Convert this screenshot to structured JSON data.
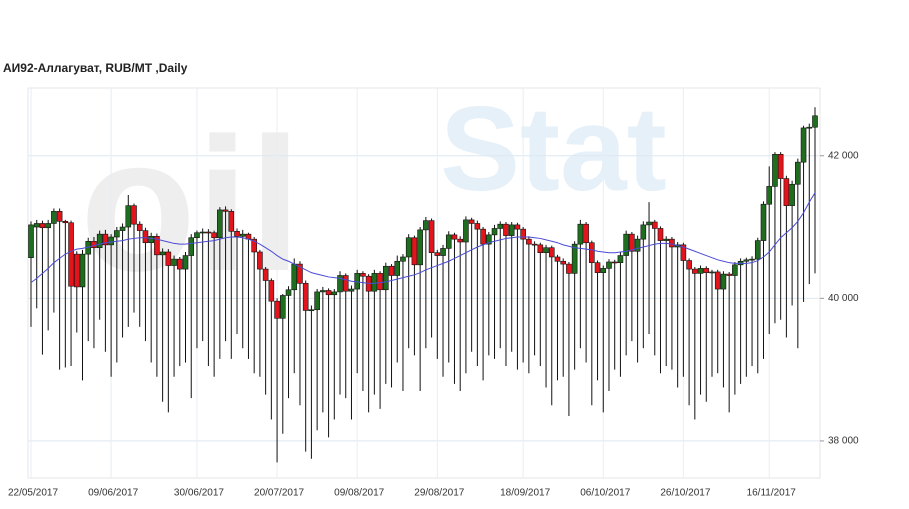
{
  "chart_data": {
    "type": "candlestick",
    "title": "АИ92-Аллагуват,  RUB/MT ,Daily",
    "watermark": [
      "oil",
      "Stat"
    ],
    "categories": [
      "22/05/2017",
      null,
      null,
      null,
      null,
      null,
      null,
      null,
      null,
      null,
      null,
      null,
      null,
      null,
      "09/06/2017",
      null,
      null,
      null,
      null,
      null,
      null,
      null,
      null,
      null,
      null,
      null,
      null,
      null,
      null,
      "30/06/2017",
      null,
      null,
      null,
      null,
      null,
      null,
      null,
      null,
      null,
      null,
      null,
      null,
      null,
      "20/07/2017",
      null,
      null,
      null,
      null,
      null,
      null,
      null,
      null,
      null,
      null,
      null,
      null,
      null,
      "09/08/2017",
      null,
      null,
      null,
      null,
      null,
      null,
      null,
      null,
      null,
      null,
      null,
      null,
      null,
      "29/08/2017",
      null,
      null,
      null,
      null,
      null,
      null,
      null,
      null,
      null,
      null,
      null,
      null,
      null,
      null,
      "18/09/2017",
      null,
      null,
      null,
      null,
      null,
      null,
      null,
      null,
      null,
      null,
      null,
      null,
      null,
      "06/10/2017",
      null,
      null,
      null,
      null,
      null,
      null,
      null,
      null,
      null,
      null,
      null,
      null,
      null,
      "26/10/2017",
      null,
      null,
      null,
      null,
      null,
      null,
      null,
      null,
      null,
      null,
      null,
      null,
      null,
      null,
      "16/11/2017",
      null,
      null,
      null,
      null,
      null,
      null,
      null,
      null
    ],
    "ohlc": [
      [
        40570,
        41080,
        39600,
        41030
      ],
      [
        41000,
        41100,
        39860,
        41050
      ],
      [
        41050,
        41090,
        39210,
        40990
      ],
      [
        40990,
        41100,
        39550,
        41050
      ],
      [
        41050,
        41260,
        39800,
        41220
      ],
      [
        41220,
        41260,
        39000,
        41080
      ],
      [
        41080,
        41100,
        39030,
        41060
      ],
      [
        41060,
        41090,
        39050,
        40170
      ],
      [
        40620,
        40660,
        39520,
        40160
      ],
      [
        40160,
        40680,
        38850,
        40620
      ],
      [
        40620,
        40850,
        39400,
        40800
      ],
      [
        40800,
        40860,
        39300,
        40710
      ],
      [
        40710,
        40950,
        39700,
        40900
      ],
      [
        40900,
        40960,
        39250,
        40750
      ],
      [
        40750,
        40900,
        38900,
        40860
      ],
      [
        40860,
        41000,
        39100,
        40950
      ],
      [
        40950,
        41050,
        39450,
        41000
      ],
      [
        41000,
        41450,
        39600,
        41300
      ],
      [
        41300,
        41330,
        39800,
        41040
      ],
      [
        41040,
        41080,
        39600,
        40950
      ],
      [
        40950,
        40990,
        39400,
        40780
      ],
      [
        40780,
        40920,
        39100,
        40870
      ],
      [
        40870,
        40910,
        38900,
        40610
      ],
      [
        40610,
        40700,
        38550,
        40650
      ],
      [
        40650,
        40690,
        38400,
        40460
      ],
      [
        40460,
        40600,
        38900,
        40550
      ],
      [
        40550,
        40580,
        39050,
        40410
      ],
      [
        40410,
        40650,
        39100,
        40600
      ],
      [
        40600,
        40900,
        38600,
        40850
      ],
      [
        40850,
        40950,
        39300,
        40920
      ],
      [
        40920,
        40980,
        39400,
        40930
      ],
      [
        40930,
        40970,
        39050,
        40920
      ],
      [
        40920,
        40950,
        38900,
        40850
      ],
      [
        40850,
        41280,
        39150,
        41240
      ],
      [
        41240,
        41290,
        39400,
        41220
      ],
      [
        41220,
        41250,
        39150,
        40940
      ],
      [
        40940,
        40980,
        39500,
        40870
      ],
      [
        40870,
        40960,
        39300,
        40900
      ],
      [
        40900,
        40920,
        39150,
        40830
      ],
      [
        40830,
        40860,
        38950,
        40650
      ],
      [
        40650,
        40680,
        38900,
        40410
      ],
      [
        40410,
        40440,
        38650,
        40250
      ],
      [
        40250,
        40280,
        38300,
        39960
      ],
      [
        39960,
        40000,
        37700,
        39720
      ],
      [
        39720,
        40060,
        38100,
        40040
      ],
      [
        40040,
        40170,
        38600,
        40120
      ],
      [
        40120,
        40560,
        38950,
        40480
      ],
      [
        40480,
        40520,
        38500,
        40210
      ],
      [
        40210,
        40250,
        37850,
        39830
      ],
      [
        39830,
        39900,
        37750,
        39840
      ],
      [
        39840,
        40130,
        38150,
        40090
      ],
      [
        40090,
        40160,
        38400,
        40110
      ],
      [
        40110,
        40140,
        38050,
        40050
      ],
      [
        40050,
        40130,
        38300,
        40090
      ],
      [
        40090,
        40380,
        38650,
        40320
      ],
      [
        40320,
        40350,
        38600,
        40100
      ],
      [
        40100,
        40180,
        38300,
        40130
      ],
      [
        40130,
        40400,
        38950,
        40350
      ],
      [
        40350,
        40380,
        38700,
        40310
      ],
      [
        40310,
        40340,
        38400,
        40100
      ],
      [
        40100,
        40400,
        38650,
        40350
      ],
      [
        40350,
        40380,
        38450,
        40120
      ],
      [
        40120,
        40500,
        38800,
        40450
      ],
      [
        40450,
        40480,
        38750,
        40320
      ],
      [
        40320,
        40600,
        39100,
        40520
      ],
      [
        40520,
        40620,
        38700,
        40580
      ],
      [
        40580,
        40900,
        39300,
        40850
      ],
      [
        40850,
        40880,
        39200,
        40470
      ],
      [
        40470,
        41000,
        38700,
        40960
      ],
      [
        40960,
        41140,
        39300,
        41090
      ],
      [
        41090,
        41120,
        39450,
        40640
      ],
      [
        40640,
        40680,
        39150,
        40600
      ],
      [
        40600,
        40750,
        38900,
        40700
      ],
      [
        40700,
        40940,
        39100,
        40890
      ],
      [
        40890,
        40920,
        38800,
        40830
      ],
      [
        40830,
        40870,
        38700,
        40790
      ],
      [
        40790,
        41150,
        38950,
        41100
      ],
      [
        41100,
        41130,
        39250,
        41050
      ],
      [
        41050,
        41090,
        39050,
        40970
      ],
      [
        40970,
        41000,
        38850,
        40760
      ],
      [
        40760,
        40930,
        39200,
        40890
      ],
      [
        40890,
        41030,
        39150,
        40980
      ],
      [
        40980,
        41080,
        39300,
        41040
      ],
      [
        41040,
        41070,
        39050,
        40880
      ],
      [
        40880,
        41070,
        39250,
        41030
      ],
      [
        41030,
        41060,
        39000,
        40970
      ],
      [
        40970,
        41000,
        39100,
        40830
      ],
      [
        40830,
        40870,
        38950,
        40760
      ],
      [
        40760,
        40800,
        39200,
        40750
      ],
      [
        40750,
        40780,
        39050,
        40640
      ],
      [
        40640,
        40750,
        38750,
        40710
      ],
      [
        40710,
        40740,
        38500,
        40580
      ],
      [
        40580,
        40610,
        38850,
        40520
      ],
      [
        40520,
        40560,
        38900,
        40480
      ],
      [
        40480,
        40510,
        38350,
        40350
      ],
      [
        40350,
        40800,
        39000,
        40760
      ],
      [
        40760,
        41100,
        39300,
        41040
      ],
      [
        41040,
        41070,
        39100,
        40780
      ],
      [
        40780,
        40810,
        38500,
        40500
      ],
      [
        40500,
        40530,
        38850,
        40360
      ],
      [
        40360,
        40460,
        38400,
        40420
      ],
      [
        40420,
        40550,
        38700,
        40510
      ],
      [
        40510,
        40540,
        39000,
        40500
      ],
      [
        40500,
        40650,
        38900,
        40600
      ],
      [
        40600,
        40950,
        39200,
        40900
      ],
      [
        40900,
        40930,
        39400,
        40660
      ],
      [
        40660,
        40880,
        39100,
        40830
      ],
      [
        40830,
        41080,
        39300,
        41030
      ],
      [
        41030,
        41350,
        39500,
        41070
      ],
      [
        41070,
        41100,
        39200,
        40980
      ],
      [
        40980,
        41010,
        38950,
        40810
      ],
      [
        40810,
        40870,
        39050,
        40830
      ],
      [
        40830,
        40860,
        39000,
        40720
      ],
      [
        40720,
        40790,
        38750,
        40750
      ],
      [
        40750,
        40780,
        38900,
        40530
      ],
      [
        40530,
        40560,
        38500,
        40410
      ],
      [
        40410,
        40440,
        38300,
        40350
      ],
      [
        40350,
        40460,
        38650,
        40420
      ],
      [
        40420,
        40450,
        38550,
        40360
      ],
      [
        40360,
        40400,
        38900,
        40370
      ],
      [
        40370,
        40400,
        38950,
        40130
      ],
      [
        40130,
        40380,
        38750,
        40340
      ],
      [
        40340,
        40370,
        38400,
        40320
      ],
      [
        40320,
        40510,
        38650,
        40470
      ],
      [
        40470,
        40560,
        38800,
        40520
      ],
      [
        40520,
        40570,
        38900,
        40540
      ],
      [
        40540,
        40590,
        39050,
        40550
      ],
      [
        40550,
        40850,
        38950,
        40810
      ],
      [
        40810,
        41360,
        39150,
        41320
      ],
      [
        41320,
        41850,
        39500,
        41570
      ],
      [
        41570,
        42050,
        39650,
        42020
      ],
      [
        42020,
        42050,
        39700,
        41680
      ],
      [
        41680,
        41720,
        39450,
        41300
      ],
      [
        41300,
        41650,
        39900,
        41600
      ],
      [
        41600,
        41960,
        39300,
        41910
      ],
      [
        41910,
        42420,
        39950,
        42390
      ],
      [
        42390,
        42450,
        40200,
        42400
      ],
      [
        42400,
        42680,
        40350,
        42560
      ]
    ],
    "ma": [
      40220,
      40280,
      40350,
      40420,
      40500,
      40560,
      40620,
      40660,
      40690,
      40700,
      40720,
      40740,
      40760,
      40780,
      40790,
      40800,
      40810,
      40830,
      40840,
      40850,
      40850,
      40840,
      40830,
      40810,
      40790,
      40770,
      40760,
      40760,
      40770,
      40780,
      40790,
      40800,
      40810,
      40830,
      40850,
      40860,
      40860,
      40850,
      40830,
      40800,
      40760,
      40710,
      40660,
      40600,
      40550,
      40520,
      40480,
      40440,
      40400,
      40360,
      40340,
      40320,
      40300,
      40290,
      40280,
      40260,
      40240,
      40230,
      40220,
      40210,
      40210,
      40220,
      40230,
      40250,
      40270,
      40290,
      40310,
      40330,
      40360,
      40400,
      40430,
      40460,
      40490,
      40520,
      40560,
      40600,
      40640,
      40680,
      40720,
      40750,
      40780,
      40800,
      40820,
      40840,
      40850,
      40860,
      40860,
      40860,
      40850,
      40840,
      40820,
      40800,
      40780,
      40750,
      40730,
      40710,
      40700,
      40690,
      40680,
      40660,
      40650,
      40640,
      40640,
      40650,
      40660,
      40680,
      40700,
      40720,
      40740,
      40760,
      40770,
      40770,
      40760,
      40740,
      40720,
      40690,
      40660,
      40630,
      40600,
      40570,
      40540,
      40520,
      40500,
      40490,
      40490,
      40490,
      40500,
      40530,
      40580,
      40650,
      40750,
      40850,
      40920,
      40990,
      41080,
      41200,
      41350,
      41480
    ],
    "up_color": "#1f6e1f",
    "down_color": "#e3141b",
    "ma_color": "#4b4bd6",
    "ylim": [
      37480,
      42950
    ],
    "yticks": [
      {
        "value": 38000,
        "label": "38 000"
      },
      {
        "value": 40000,
        "label": "40 000"
      },
      {
        "value": 42000,
        "label": "42 000"
      }
    ],
    "grid": true
  }
}
